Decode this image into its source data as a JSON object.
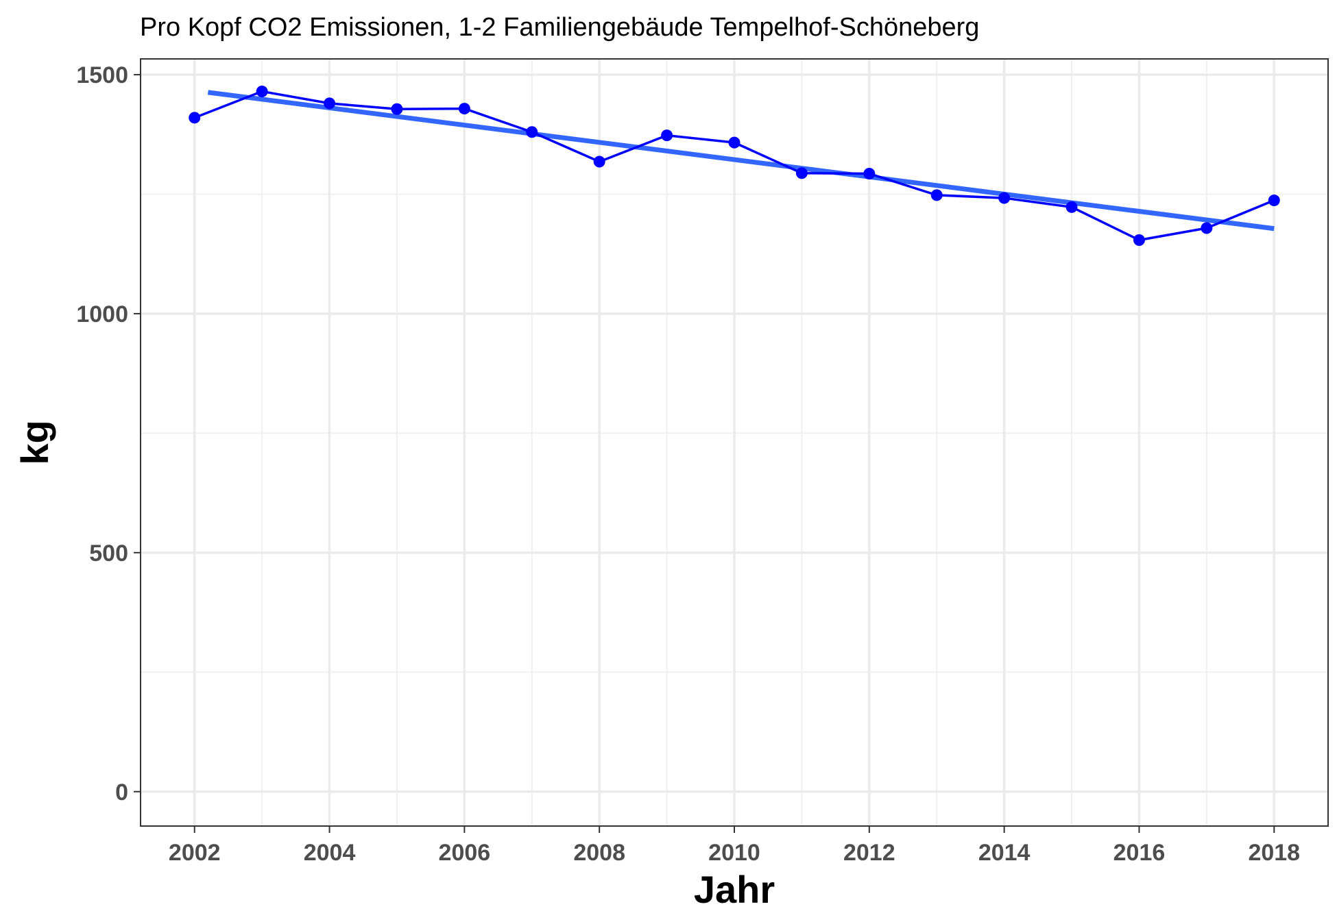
{
  "chart_data": {
    "type": "line",
    "title": "Pro Kopf CO2 Emissionen, 1-2 Familiengebäude Tempelhof-Schöneberg",
    "xlabel": "Jahr",
    "ylabel": "kg",
    "xlim": [
      2001.2,
      2018.8
    ],
    "ylim": [
      -72,
      1533
    ],
    "x_ticks": [
      2002,
      2004,
      2006,
      2008,
      2010,
      2012,
      2014,
      2016,
      2018
    ],
    "x_tick_labels": [
      "2002",
      "2004",
      "2006",
      "2008",
      "2010",
      "2012",
      "2014",
      "2016",
      "2018"
    ],
    "y_ticks": [
      0,
      500,
      1000,
      1500
    ],
    "y_tick_labels": [
      "0",
      "500",
      "1000",
      "1500"
    ],
    "grid": true,
    "series": [
      {
        "kind": "line+points",
        "color": "#0000ff",
        "x": [
          2002,
          2003,
          2004,
          2005,
          2006,
          2007,
          2008,
          2009,
          2010,
          2011,
          2012,
          2013,
          2014,
          2015,
          2016,
          2017,
          2018
        ],
        "values": [
          1410,
          1465,
          1440,
          1428,
          1429,
          1380,
          1318,
          1373,
          1358,
          1294,
          1293,
          1248,
          1242,
          1223,
          1154,
          1179,
          1237
        ]
      },
      {
        "kind": "trend",
        "color": "#3366ff",
        "x": [
          2002.2,
          2018
        ],
        "values": [
          1463,
          1178
        ]
      }
    ]
  }
}
